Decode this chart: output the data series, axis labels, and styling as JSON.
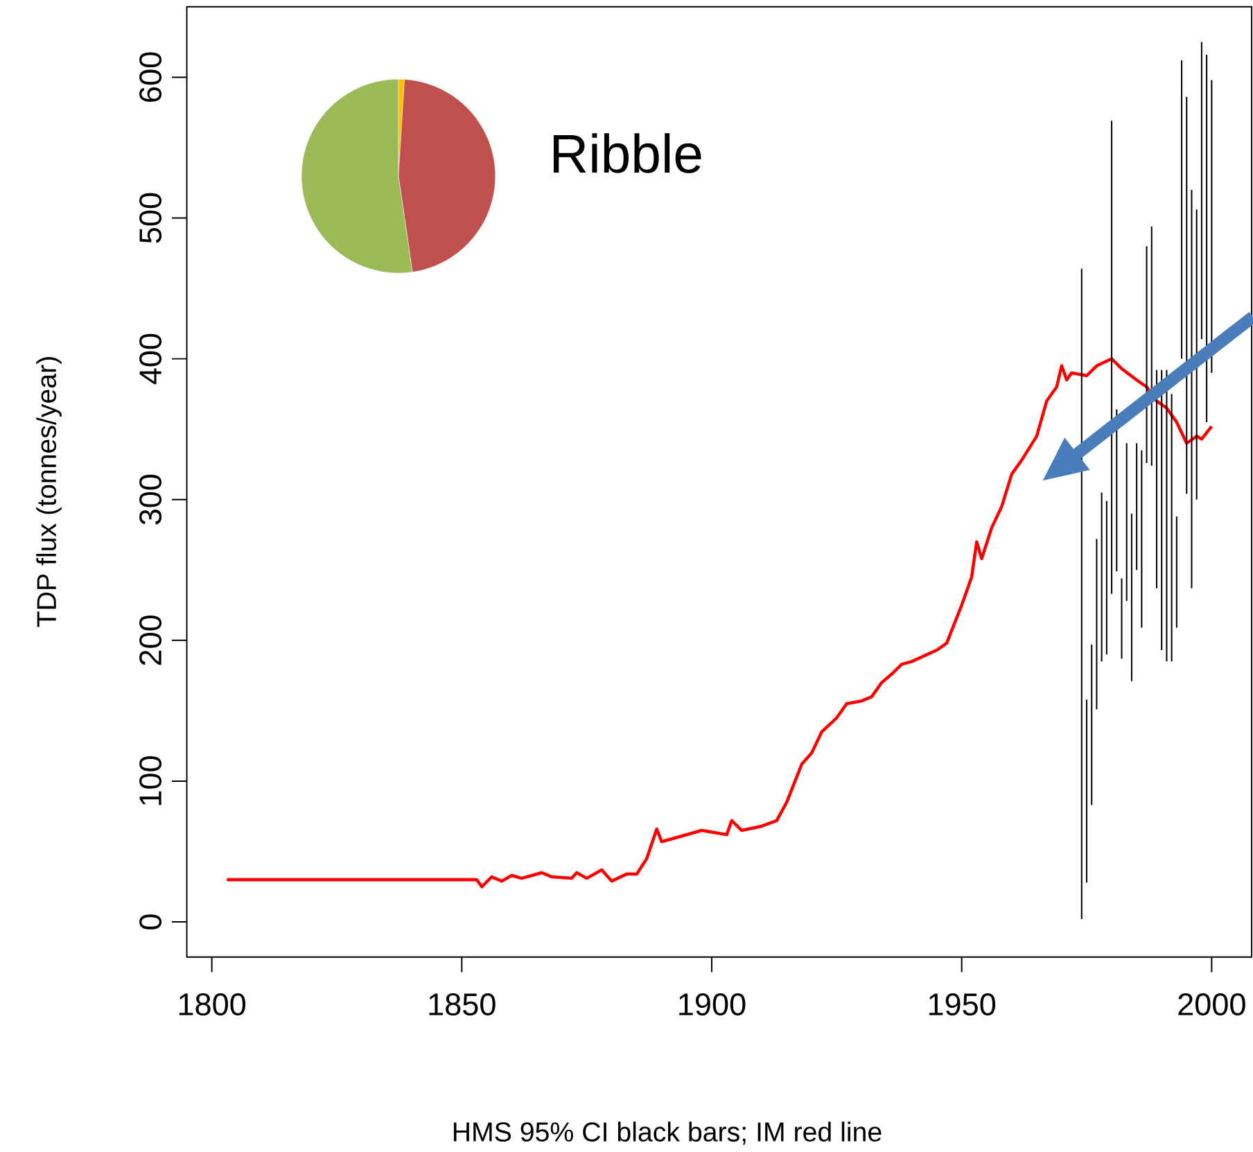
{
  "chart_data": [
    {
      "type": "line",
      "annotations": [
        "Ribble"
      ],
      "xlabel": "HMS 95% CI black bars; IM red line",
      "ylabel": "TDP flux (tonnes/year)",
      "xlim": [
        1795,
        2008
      ],
      "ylim": [
        -25,
        650
      ],
      "xticks": [
        1800,
        1850,
        1900,
        1950,
        2000
      ],
      "yticks": [
        0,
        100,
        200,
        300,
        400,
        500,
        600
      ],
      "series": [
        {
          "type": "line",
          "color": "#ff0000",
          "x": [
            1803,
            1853,
            1854,
            1856,
            1858,
            1860,
            1862,
            1866,
            1868,
            1872,
            1873,
            1875,
            1878,
            1880,
            1883,
            1885,
            1887,
            1889,
            1890,
            1893,
            1898,
            1903,
            1904,
            1906,
            1910,
            1913,
            1915,
            1918,
            1920,
            1922,
            1925,
            1927,
            1930,
            1932,
            1934,
            1936,
            1938,
            1940,
            1945,
            1947,
            1950,
            1952,
            1953,
            1954,
            1956,
            1958,
            1960,
            1962,
            1965,
            1967,
            1969,
            1970,
            1971,
            1972,
            1975,
            1977,
            1980,
            1982,
            1985,
            1987,
            1989,
            1991,
            1993,
            1995,
            1997,
            1998,
            2000
          ],
          "values": [
            30,
            30,
            25,
            32,
            29,
            33,
            31,
            35,
            32,
            31,
            35,
            31,
            37,
            29,
            34,
            34,
            45,
            66,
            57,
            60,
            65,
            62,
            72,
            65,
            68,
            72,
            85,
            112,
            120,
            135,
            145,
            155,
            157,
            160,
            170,
            176,
            183,
            185,
            193,
            198,
            225,
            245,
            270,
            258,
            280,
            295,
            318,
            328,
            345,
            370,
            380,
            395,
            385,
            390,
            388,
            395,
            400,
            393,
            385,
            380,
            370,
            365,
            355,
            340,
            345,
            343,
            352
          ]
        },
        {
          "type": "bar",
          "color": "#000000",
          "x": [
            1974,
            1975,
            1976,
            1977,
            1978,
            1979,
            1980,
            1981,
            1982,
            1983,
            1984,
            1985,
            1986,
            1987,
            1988,
            1989,
            1990,
            1991,
            1992,
            1993,
            1994,
            1995,
            1996,
            1997,
            1998,
            1999,
            2000
          ],
          "base": [
            2,
            28,
            83,
            151,
            185,
            190,
            233,
            249,
            187,
            228,
            171,
            250,
            209,
            326,
            324,
            237,
            193,
            185,
            185,
            209,
            400,
            304,
            237,
            300,
            414,
            355,
            390
          ],
          "values": [
            462,
            130,
            114,
            121,
            120,
            109,
            336,
            115,
            57,
            112,
            119,
            90,
            126,
            154,
            170,
            155,
            199,
            207,
            190,
            79,
            212,
            282,
            283,
            206,
            211,
            261,
            208
          ]
        }
      ]
    },
    {
      "type": "pie",
      "categories": [
        null,
        null,
        null
      ],
      "values": [
        1,
        46.7,
        52.3
      ],
      "colors": [
        "#ffc000",
        "#c0504d",
        "#9bbb59"
      ]
    }
  ]
}
